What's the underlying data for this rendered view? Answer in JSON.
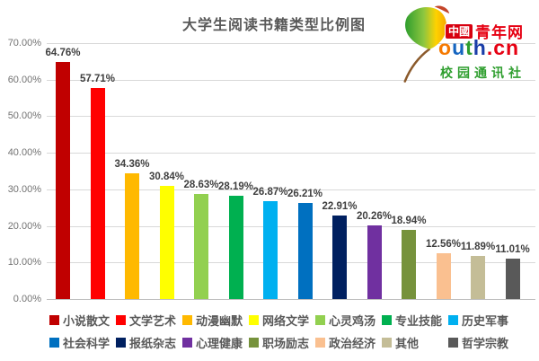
{
  "chart_data": {
    "type": "bar",
    "title": "大学生阅读书籍类型比例图",
    "categories": [
      "小说散文",
      "文学艺术",
      "动漫幽默",
      "网络文学",
      "心灵鸡汤",
      "专业技能",
      "历史军事",
      "社会科学",
      "报纸杂志",
      "心理健康",
      "职场励志",
      "政治经济",
      "其他",
      "哲学宗教"
    ],
    "values": [
      64.76,
      57.71,
      34.36,
      30.84,
      28.63,
      28.19,
      26.87,
      26.21,
      22.91,
      20.26,
      18.94,
      12.56,
      11.89,
      11.01
    ],
    "value_labels": [
      "64.76%",
      "57.71%",
      "34.36%",
      "30.84%",
      "28.63%",
      "28.19%",
      "26.87%",
      "26.21%",
      "22.91%",
      "20.26%",
      "18.94%",
      "12.56%",
      "11.89%",
      "11.01%"
    ],
    "colors": [
      "#C00000",
      "#FF0000",
      "#FFB900",
      "#FFFF00",
      "#92D050",
      "#00B050",
      "#00B0F0",
      "#0070C0",
      "#002060",
      "#7030A0",
      "#76923C",
      "#FAC090",
      "#C4BD97",
      "#595959"
    ],
    "yticks": [
      "0.00%",
      "10.00%",
      "20.00%",
      "30.00%",
      "40.00%",
      "50.00%",
      "60.00%",
      "70.00%"
    ],
    "ylim": [
      0,
      70
    ],
    "ytick_step": 10,
    "grid": true,
    "legend_position": "bottom",
    "legend_rows": 2,
    "gridline_color": "#D9D9D9",
    "label_color": "#3F3F3F",
    "axis_text_color": "#737373",
    "title_color": "#595959"
  },
  "logo": {
    "leaf_icon": "ginkgo-leaf-icon",
    "badge": "中國",
    "badge_bg": "#D7000F",
    "brand": "青年网",
    "brand_color": "#E60012",
    "domain_letters": [
      {
        "t": "o",
        "c": "#F57900"
      },
      {
        "t": "u",
        "c": "#1565C0"
      },
      {
        "t": "t",
        "c": "#2E9E2E"
      },
      {
        "t": "h",
        "c": "#1A3DA8"
      },
      {
        "t": ".cn",
        "c": "#E60012"
      }
    ],
    "subtitle": "校园通讯社",
    "subtitle_color": "#2E9E2E"
  }
}
